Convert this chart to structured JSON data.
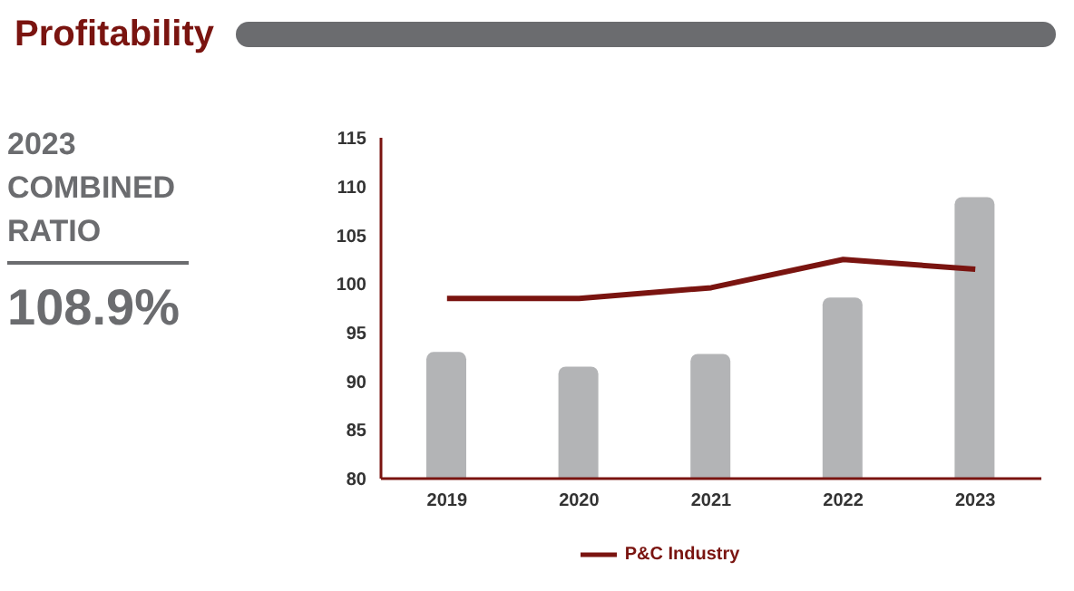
{
  "chart_data": {
    "type": "bar",
    "title": "Profitability",
    "annotations": [
      "2023 COMBINED RATIO",
      "108.9%"
    ],
    "categories": [
      "2019",
      "2020",
      "2021",
      "2022",
      "2023"
    ],
    "series": [
      {
        "color": "#b3b4b6",
        "values": [
          93,
          91.5,
          92.8,
          98.6,
          108.9
        ]
      },
      {
        "type": "line",
        "name": "P&C Industry",
        "color": "#7a1410",
        "values": [
          98.5,
          98.5,
          99.6,
          102.5,
          101.5
        ]
      }
    ],
    "ylim": [
      80,
      115
    ],
    "yticks": [
      80,
      85,
      90,
      95,
      100,
      105,
      110,
      115
    ],
    "grid": false,
    "legend": "bottom",
    "marker": "none",
    "line_style": "solid"
  }
}
